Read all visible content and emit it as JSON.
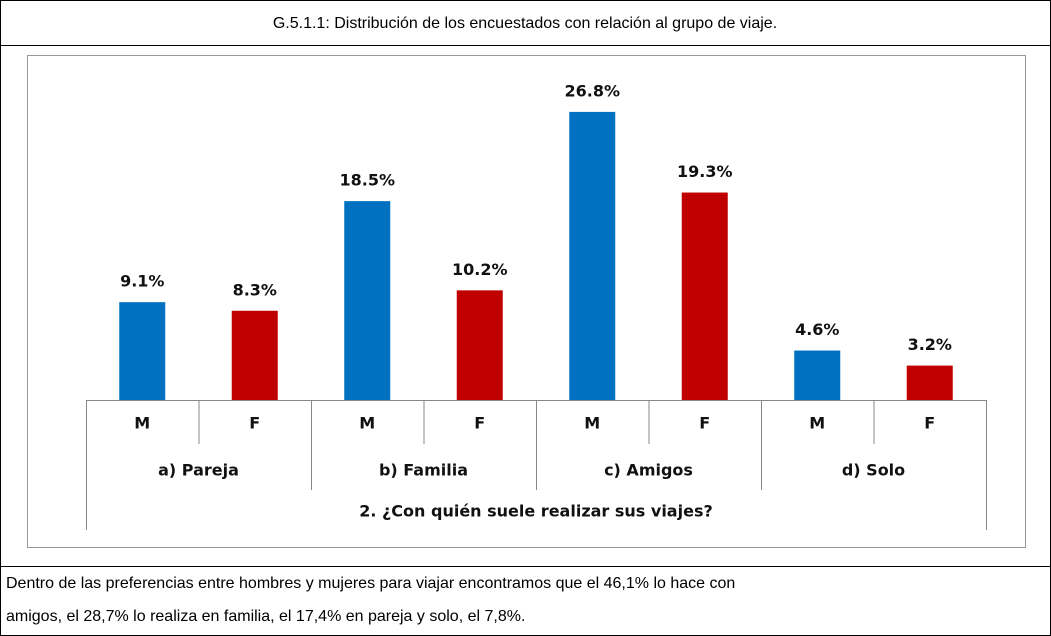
{
  "chart_data": {
    "type": "bar",
    "title": "G.5.1.1: Distribución de los encuestados con relación al grupo de viaje.",
    "categories": [
      "a)  Pareja",
      "b) Familia",
      "c)  Amigos",
      "d)  Solo"
    ],
    "series": [
      {
        "name": "M",
        "color": "#0070c0",
        "values": [
          9.1,
          18.5,
          26.8,
          4.6
        ],
        "value_labels": [
          "9.1%",
          "18.5%",
          "26.8%",
          "4.6%"
        ]
      },
      {
        "name": "F",
        "color": "#c00000",
        "values": [
          8.3,
          10.2,
          19.3,
          3.2
        ],
        "value_labels": [
          "8.3%",
          "10.2%",
          "19.3%",
          "3.2%"
        ]
      }
    ],
    "x_label": "2.    ¿Con quién suele realizar sus viajes?"
  },
  "footer": {
    "lines": [
      "Dentro de las preferencias entre hombres y mujeres para viajar encontramos que el 46,1% lo hace con",
      "amigos, el  28,7% lo realiza en familia, el 17,4% en pareja y solo, el 7,8%."
    ]
  }
}
